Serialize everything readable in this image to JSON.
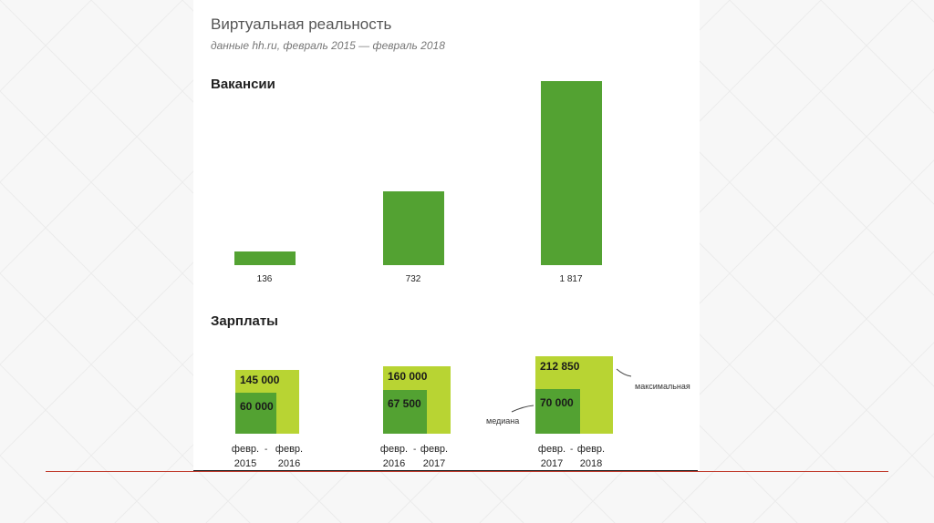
{
  "title": "Виртуальная реальность",
  "subtitle": "данные hh.ru, февраль 2015 — февраль 2018",
  "chart_data": [
    {
      "type": "bar",
      "title": "Вакансии",
      "categories": [
        "",
        "",
        ""
      ],
      "values": [
        136,
        732,
        1817
      ],
      "value_labels": [
        "136",
        "732",
        "1 817"
      ],
      "ylim": [
        0,
        1817
      ],
      "grid": false,
      "colors": {
        "bar": "#53a232"
      }
    },
    {
      "type": "bar",
      "title": "Зарплаты",
      "categories": [
        {
          "from": "февр. 2015",
          "to": "февр. 2016"
        },
        {
          "from": "февр. 2016",
          "to": "февр. 2017"
        },
        {
          "from": "февр. 2017",
          "to": "февр. 2018"
        }
      ],
      "series": [
        {
          "name": "максимальная",
          "values": [
            145000,
            160000,
            212850
          ],
          "labels": [
            "145 000",
            "160 000",
            "212 850"
          ]
        },
        {
          "name": "медиана",
          "values": [
            60000,
            67500,
            70000
          ],
          "labels": [
            "60 000",
            "67 500",
            "70 000"
          ]
        }
      ],
      "colors": {
        "max": "#b8d433",
        "median": "#53a232"
      }
    }
  ],
  "periods": [
    {
      "a1": "февр.",
      "a2": "2015",
      "b1": "февр.",
      "b2": "2016"
    },
    {
      "a1": "февр.",
      "a2": "2016",
      "b1": "февр.",
      "b2": "2017"
    },
    {
      "a1": "февр.",
      "a2": "2017",
      "b1": "февр.",
      "b2": "2018"
    }
  ],
  "annotations": {
    "max": "максимальная",
    "median": "медиана"
  },
  "colors": {
    "footer_line": "#c0392b"
  }
}
